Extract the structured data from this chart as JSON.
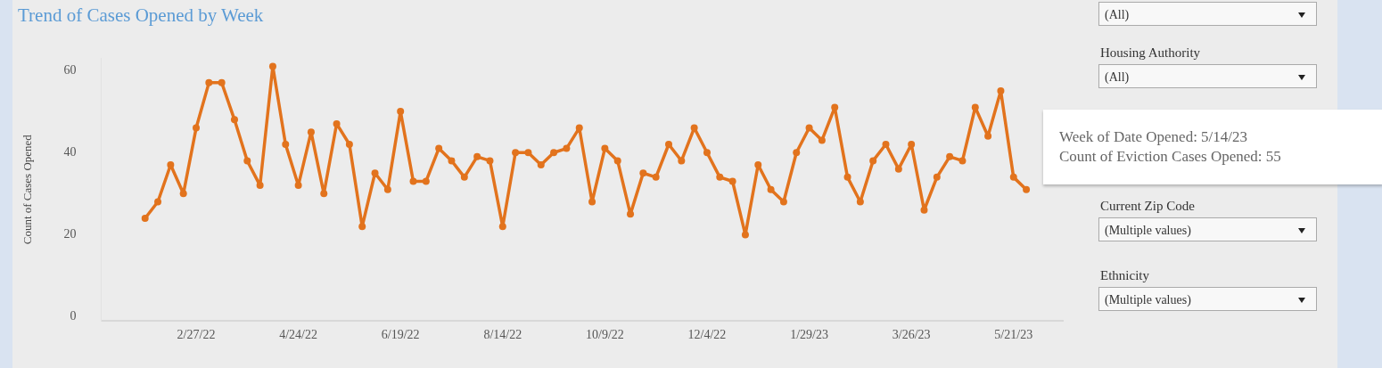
{
  "chart_data": {
    "type": "line",
    "title": "Trend of Cases Opened by Week",
    "ylabel": "Count of Cases Opened",
    "x": [
      "2022-01-30",
      "2022-02-06",
      "2022-02-13",
      "2022-02-20",
      "2022-02-27",
      "2022-03-06",
      "2022-03-13",
      "2022-03-20",
      "2022-03-27",
      "2022-04-03",
      "2022-04-10",
      "2022-04-17",
      "2022-04-24",
      "2022-05-01",
      "2022-05-08",
      "2022-05-15",
      "2022-05-22",
      "2022-05-29",
      "2022-06-05",
      "2022-06-12",
      "2022-06-19",
      "2022-06-26",
      "2022-07-03",
      "2022-07-10",
      "2022-07-17",
      "2022-07-24",
      "2022-07-31",
      "2022-08-07",
      "2022-08-14",
      "2022-08-21",
      "2022-08-28",
      "2022-09-04",
      "2022-09-11",
      "2022-09-18",
      "2022-09-25",
      "2022-10-02",
      "2022-10-09",
      "2022-10-16",
      "2022-10-23",
      "2022-10-30",
      "2022-11-06",
      "2022-11-13",
      "2022-11-20",
      "2022-11-27",
      "2022-12-04",
      "2022-12-11",
      "2022-12-18",
      "2022-12-25",
      "2023-01-01",
      "2023-01-08",
      "2023-01-15",
      "2023-01-22",
      "2023-01-29",
      "2023-02-05",
      "2023-02-12",
      "2023-02-19",
      "2023-02-26",
      "2023-03-05",
      "2023-03-12",
      "2023-03-19",
      "2023-03-26",
      "2023-04-02",
      "2023-04-09",
      "2023-04-16",
      "2023-04-23",
      "2023-04-30",
      "2023-05-07",
      "2023-05-14",
      "2023-05-21",
      "2023-05-28"
    ],
    "series": [
      {
        "color": "#e2731d",
        "values": [
          24,
          28,
          37,
          30,
          46,
          57,
          57,
          48,
          38,
          32,
          61,
          42,
          32,
          45,
          30,
          47,
          42,
          22,
          35,
          31,
          50,
          33,
          33,
          41,
          38,
          34,
          39,
          38,
          22,
          40,
          40,
          37,
          40,
          41,
          46,
          28,
          41,
          38,
          25,
          35,
          34,
          42,
          38,
          46,
          40,
          34,
          33,
          20,
          37,
          31,
          28,
          40,
          46,
          43,
          51,
          34,
          28,
          38,
          42,
          36,
          42,
          26,
          34,
          39,
          38,
          51,
          44,
          55,
          34,
          31
        ]
      }
    ],
    "xlim": [
      "2022-01-06",
      "2023-06-17"
    ],
    "xticks": [
      {
        "value": "2022-02-27",
        "label": "2/27/22"
      },
      {
        "value": "2022-04-24",
        "label": "4/24/22"
      },
      {
        "value": "2022-06-19",
        "label": "6/19/22"
      },
      {
        "value": "2022-08-14",
        "label": "8/14/22"
      },
      {
        "value": "2022-10-09",
        "label": "10/9/22"
      },
      {
        "value": "2022-12-04",
        "label": "12/4/22"
      },
      {
        "value": "2023-01-29",
        "label": "1/29/23"
      },
      {
        "value": "2023-03-26",
        "label": "3/26/23"
      },
      {
        "value": "2023-05-21",
        "label": "5/21/23"
      }
    ],
    "ylim": [
      -1,
      63
    ],
    "yticks": [
      0,
      20,
      40,
      60
    ],
    "grid": false,
    "legend": false,
    "marker": "circle",
    "line_style": "solid",
    "annotations": [
      "Week of Date Opened: 5/14/23\nCount of Eviction Cases Opened: 55",
      "(All)",
      "Housing Authority",
      "(All)",
      "Current Zip Code",
      "(Multiple values)",
      "Ethnicity",
      "(Multiple values)"
    ]
  }
}
